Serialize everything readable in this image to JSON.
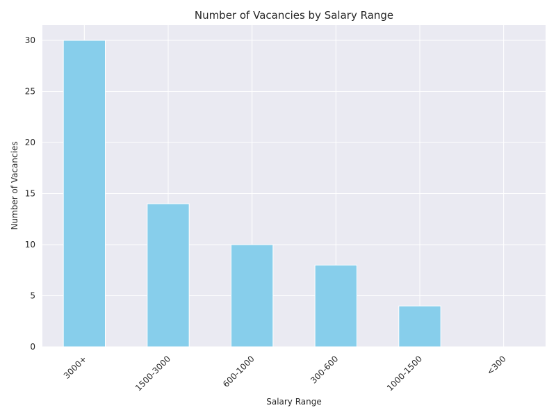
{
  "chart_data": {
    "type": "bar",
    "title": "Number of Vacancies by Salary Range",
    "xlabel": "Salary Range",
    "ylabel": "Number of Vacancies",
    "categories": [
      "3000+",
      "1500-3000",
      "600-1000",
      "300-600",
      "1000-1500",
      "<300"
    ],
    "values": [
      30,
      14,
      10,
      8,
      4,
      0
    ],
    "ylim": [
      0,
      31.5
    ],
    "yticks": [
      "0",
      "5",
      "10",
      "15",
      "20",
      "25",
      "30"
    ],
    "grid": true,
    "legend": "none",
    "colors": {
      "bar": "#87ceeb",
      "plot_background": "#eaeaf2",
      "grid": "#ffffff"
    }
  }
}
